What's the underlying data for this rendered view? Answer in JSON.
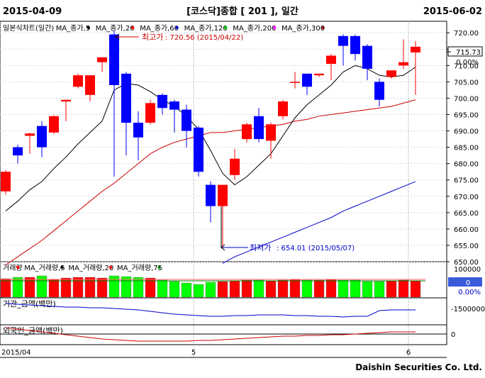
{
  "header": {
    "start_date": "2015-04-09",
    "title": "[코스닥]종합  [ 201 ],  일간",
    "end_date": "2015-06-02"
  },
  "footer": {
    "brand": "Daishin Securities Co. Ltd.",
    "x_start_label": "2015/04",
    "x_month_labels": [
      "5",
      "6"
    ]
  },
  "price_panel": {
    "legend": [
      {
        "label": "일본식차트(일간)",
        "color": "#000000"
      },
      {
        "label": "MA_종가,5",
        "color": "#000000"
      },
      {
        "label": "MA_종가,20",
        "color": "#ff0000"
      },
      {
        "label": "MA_종가,60",
        "color": "#0000cc"
      },
      {
        "label": "MA_종가,120",
        "color": "#00cc00"
      },
      {
        "label": "MA_종가,200",
        "color": "#ff00ff"
      },
      {
        "label": "MA_종가,300",
        "color": "#8b0000"
      }
    ],
    "high_annotation": {
      "prefix": "최고가",
      "text": " : 720.56 (2015/04/22)"
    },
    "low_annotation": {
      "prefix": "최저가",
      "text": " : 654.01 (2015/05/07)"
    },
    "current_price": "715.73",
    "current_change": "0.00%",
    "y_ticks": [
      "720.00",
      "715.00",
      "710.00",
      "705.00",
      "700.00",
      "695.00",
      "690.00",
      "685.00",
      "680.00",
      "675.00",
      "670.00",
      "665.00",
      "660.00",
      "655.00",
      "650.00"
    ]
  },
  "volume_panel": {
    "legend": [
      {
        "label": "거래량",
        "color": "#ff0000"
      },
      {
        "label": "MA_거래량,5",
        "color": "#000000"
      },
      {
        "label": "MA_거래량,20",
        "color": "#ff0000"
      },
      {
        "label": "MA_거래량,75",
        "color": "#008000"
      }
    ],
    "y_tick": "100000",
    "current_value": "0",
    "current_change": "0.00%"
  },
  "inst_panel": {
    "label": "기관_금액(백만)",
    "y_tick": "-1500000"
  },
  "foreign_panel": {
    "label": "외국인_금액(백만)",
    "y_tick": "0"
  },
  "colors": {
    "up": "#ff0000",
    "down": "#0000ff",
    "ma5": "#000000",
    "ma20": "#cc0000",
    "ma60": "#0000cc",
    "vol_up": "#ff0000",
    "vol_down": "#00ff00",
    "inst": "#0000cc",
    "foreign": "#cc0000"
  },
  "chart_data": {
    "type": "candlestick",
    "title": "[코스닥]종합  [ 201 ],  일간",
    "x_range": [
      "2015-04-09",
      "2015-06-02"
    ],
    "ylim": [
      650,
      722
    ],
    "candles": [
      {
        "o": 671.5,
        "h": 678.0,
        "l": 670.5,
        "c": 677.5
      },
      {
        "o": 685.0,
        "h": 685.8,
        "l": 680.0,
        "c": 682.5
      },
      {
        "o": 688.5,
        "h": 689.5,
        "l": 683.0,
        "c": 689.2
      },
      {
        "o": 691.5,
        "h": 693.0,
        "l": 682.0,
        "c": 685.0
      },
      {
        "o": 689.5,
        "h": 694.8,
        "l": 689.0,
        "c": 694.5
      },
      {
        "o": 699.0,
        "h": 699.5,
        "l": 693.0,
        "c": 699.5
      },
      {
        "o": 703.5,
        "h": 707.5,
        "l": 703.0,
        "c": 707.0
      },
      {
        "o": 701.0,
        "h": 707.0,
        "l": 699.0,
        "c": 707.0
      },
      {
        "o": 711.0,
        "h": 712.5,
        "l": 708.0,
        "c": 712.5
      },
      {
        "o": 719.5,
        "h": 720.56,
        "l": 676.0,
        "c": 704.0
      },
      {
        "o": 707.5,
        "h": 708.0,
        "l": 682.5,
        "c": 692.5
      },
      {
        "o": 692.5,
        "h": 696.0,
        "l": 681.0,
        "c": 688.0
      },
      {
        "o": 692.5,
        "h": 699.5,
        "l": 692.0,
        "c": 698.5
      },
      {
        "o": 701.0,
        "h": 701.5,
        "l": 695.0,
        "c": 697.0
      },
      {
        "o": 699.0,
        "h": 699.5,
        "l": 689.5,
        "c": 696.5
      },
      {
        "o": 696.5,
        "h": 698.0,
        "l": 685.0,
        "c": 690.0
      },
      {
        "o": 691.0,
        "h": 691.5,
        "l": 676.0,
        "c": 677.5
      },
      {
        "o": 673.5,
        "h": 674.5,
        "l": 662.0,
        "c": 667.0
      },
      {
        "o": 667.0,
        "h": 673.5,
        "l": 654.01,
        "c": 673.5
      },
      {
        "o": 676.5,
        "h": 684.5,
        "l": 675.0,
        "c": 681.5
      },
      {
        "o": 687.5,
        "h": 692.5,
        "l": 686.5,
        "c": 692.0
      },
      {
        "o": 694.5,
        "h": 697.0,
        "l": 686.5,
        "c": 687.5
      },
      {
        "o": 687.0,
        "h": 692.5,
        "l": 681.5,
        "c": 692.0
      },
      {
        "o": 694.5,
        "h": 699.5,
        "l": 693.5,
        "c": 699.0
      },
      {
        "o": 705.0,
        "h": 708.0,
        "l": 703.0,
        "c": 705.0
      },
      {
        "o": 707.5,
        "h": 707.5,
        "l": 701.0,
        "c": 703.5
      },
      {
        "o": 707.0,
        "h": 707.5,
        "l": 706.5,
        "c": 707.5
      },
      {
        "o": 710.5,
        "h": 713.5,
        "l": 705.5,
        "c": 713.0
      },
      {
        "o": 719.0,
        "h": 719.5,
        "l": 710.0,
        "c": 716.0
      },
      {
        "o": 719.0,
        "h": 719.5,
        "l": 711.5,
        "c": 713.5
      },
      {
        "o": 716.0,
        "h": 716.5,
        "l": 705.5,
        "c": 709.0
      },
      {
        "o": 705.0,
        "h": 706.0,
        "l": 697.5,
        "c": 699.5
      },
      {
        "o": 706.5,
        "h": 708.0,
        "l": 706.0,
        "c": 708.5
      },
      {
        "o": 710.0,
        "h": 718.0,
        "l": 709.0,
        "c": 711.0
      },
      {
        "o": 714.0,
        "h": 717.5,
        "l": 701.0,
        "c": 715.73
      }
    ],
    "ma5": [
      665.5,
      668.5,
      672.0,
      674.5,
      678.5,
      682.0,
      686.0,
      689.5,
      693.0,
      702.5,
      704.5,
      704.0,
      702.0,
      699.5,
      697.5,
      694.5,
      690.5,
      684.0,
      677.0,
      673.5,
      676.0,
      679.5,
      683.0,
      688.5,
      694.0,
      698.0,
      701.0,
      704.0,
      708.0,
      710.0,
      709.0,
      707.0,
      706.5,
      707.0,
      709.5
    ],
    "ma20": [
      649.0,
      651.5,
      654.0,
      656.5,
      659.5,
      662.5,
      665.5,
      668.5,
      671.5,
      674.0,
      677.0,
      680.0,
      683.0,
      685.0,
      686.5,
      687.5,
      688.5,
      689.5,
      689.5,
      690.0,
      690.5,
      691.0,
      691.5,
      692.0,
      693.0,
      693.5,
      694.5,
      695.0,
      695.5,
      696.0,
      696.5,
      697.0,
      697.5,
      698.5,
      699.5
    ],
    "ma60": [
      null,
      null,
      null,
      null,
      null,
      null,
      null,
      null,
      null,
      null,
      null,
      null,
      null,
      null,
      null,
      null,
      null,
      null,
      649.5,
      651.5,
      653.0,
      654.5,
      656.0,
      657.5,
      659.0,
      660.5,
      662.0,
      663.5,
      665.5,
      667.0,
      668.5,
      670.0,
      671.5,
      673.0,
      674.5
    ]
  }
}
